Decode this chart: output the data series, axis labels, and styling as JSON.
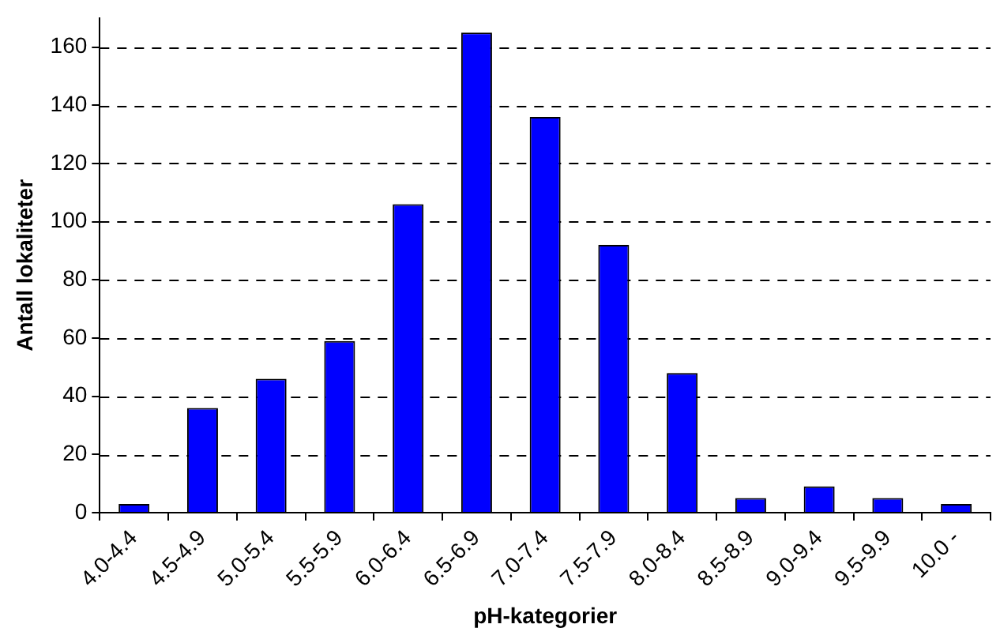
{
  "chart_data": {
    "type": "bar",
    "xlabel": "pH-kategorier",
    "ylabel": "Antall lokaliteter",
    "categories": [
      "4.0-4.4",
      "4.5-4.9",
      "5.0-5.4",
      "5.5-5.9",
      "6.0-6.4",
      "6.5-6.9",
      "7.0-7.4",
      "7.5-7.9",
      "8.0-8.4",
      "8.5-8.9",
      "9.0-9.4",
      "9.5-9.9",
      "10.0 -"
    ],
    "values": [
      3,
      36,
      46,
      59,
      106,
      165,
      136,
      92,
      48,
      5,
      9,
      5,
      3
    ],
    "color": "#0000ff",
    "ylim": [
      0,
      170
    ],
    "yticks": [
      0,
      20,
      40,
      60,
      80,
      100,
      120,
      140,
      160
    ],
    "grid": "y",
    "legend": false
  }
}
